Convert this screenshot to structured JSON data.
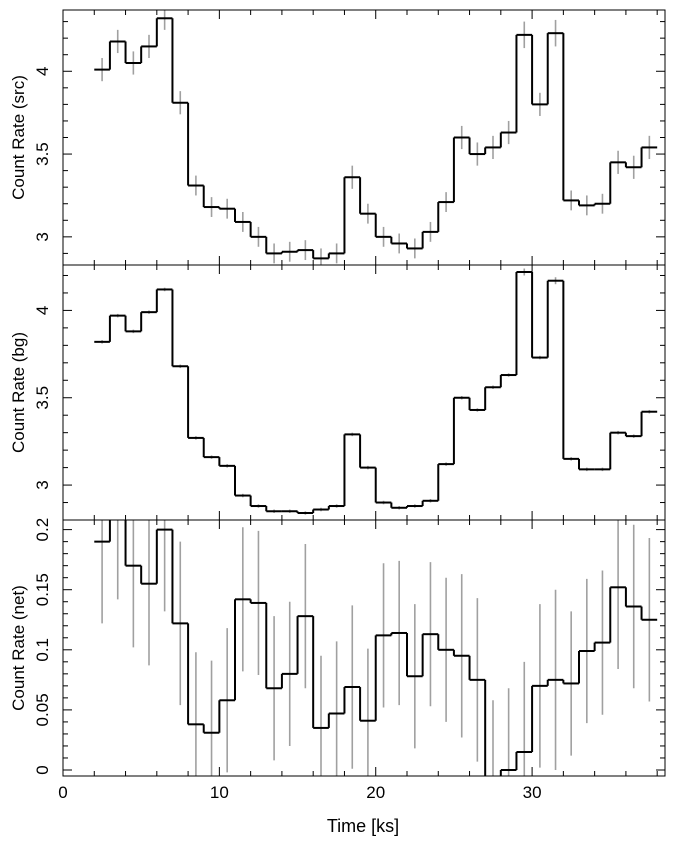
{
  "figure": {
    "xlabel": "Time [ks]",
    "colors": {
      "step": "#000000",
      "error": "#a0a0a0",
      "axis": "#000000"
    }
  },
  "chart_data": [
    {
      "type": "line",
      "panel": "src",
      "ylabel": "Count Rate (src)",
      "xlim": [
        0,
        38.5
      ],
      "ylim": [
        2.83,
        4.37
      ],
      "xticks": [
        "0",
        "10",
        "20",
        "30"
      ],
      "yticks": [
        "3",
        "3.5",
        "4"
      ],
      "x": [
        2.5,
        3.5,
        4.5,
        5.5,
        6.5,
        7.5,
        8.5,
        9.5,
        10.5,
        11.5,
        12.5,
        13.5,
        14.5,
        15.5,
        16.5,
        17.5,
        18.5,
        19.5,
        20.5,
        21.5,
        22.5,
        23.5,
        24.5,
        25.5,
        26.5,
        27.5,
        28.5,
        29.5,
        30.5,
        31.5,
        32.5,
        33.5,
        34.5,
        35.5,
        36.5,
        37.5
      ],
      "y": [
        4.01,
        4.18,
        4.05,
        4.15,
        4.32,
        3.81,
        3.31,
        3.18,
        3.17,
        3.09,
        3.0,
        2.9,
        2.91,
        2.92,
        2.87,
        2.9,
        3.36,
        3.14,
        3.0,
        2.96,
        2.93,
        3.03,
        3.21,
        3.6,
        3.5,
        3.54,
        3.63,
        4.22,
        3.8,
        4.23,
        3.22,
        3.19,
        3.2,
        3.45,
        3.42,
        3.54
      ],
      "yerr": [
        0.07,
        0.07,
        0.07,
        0.07,
        0.07,
        0.07,
        0.06,
        0.06,
        0.06,
        0.06,
        0.06,
        0.06,
        0.06,
        0.06,
        0.06,
        0.06,
        0.07,
        0.06,
        0.06,
        0.06,
        0.06,
        0.06,
        0.06,
        0.07,
        0.07,
        0.07,
        0.07,
        0.08,
        0.07,
        0.08,
        0.06,
        0.06,
        0.06,
        0.07,
        0.07,
        0.07
      ]
    },
    {
      "type": "line",
      "panel": "bg",
      "ylabel": "Count Rate (bg)",
      "xlim": [
        0,
        38.5
      ],
      "ylim": [
        2.8,
        4.26
      ],
      "xticks": [
        "0",
        "10",
        "20",
        "30"
      ],
      "yticks": [
        "3",
        "3.5",
        "4"
      ],
      "x": [
        2.5,
        3.5,
        4.5,
        5.5,
        6.5,
        7.5,
        8.5,
        9.5,
        10.5,
        11.5,
        12.5,
        13.5,
        14.5,
        15.5,
        16.5,
        17.5,
        18.5,
        19.5,
        20.5,
        21.5,
        22.5,
        23.5,
        24.5,
        25.5,
        26.5,
        27.5,
        28.5,
        29.5,
        30.5,
        31.5,
        32.5,
        33.5,
        34.5,
        35.5,
        36.5,
        37.5
      ],
      "y": [
        3.82,
        3.97,
        3.88,
        3.99,
        4.12,
        3.68,
        3.27,
        3.16,
        3.11,
        2.94,
        2.88,
        2.85,
        2.85,
        2.84,
        2.86,
        2.88,
        3.29,
        3.1,
        2.9,
        2.87,
        2.88,
        2.91,
        3.12,
        3.5,
        3.43,
        3.56,
        3.63,
        4.22,
        3.73,
        4.17,
        3.15,
        3.09,
        3.09,
        3.3,
        3.28,
        3.42
      ],
      "yerr": [
        0.01,
        0.01,
        0.01,
        0.01,
        0.01,
        0.01,
        0.01,
        0.01,
        0.01,
        0.01,
        0.01,
        0.01,
        0.01,
        0.01,
        0.01,
        0.01,
        0.01,
        0.01,
        0.01,
        0.01,
        0.01,
        0.01,
        0.01,
        0.01,
        0.01,
        0.01,
        0.01,
        0.02,
        0.01,
        0.02,
        0.01,
        0.01,
        0.01,
        0.01,
        0.01,
        0.01
      ]
    },
    {
      "type": "line",
      "panel": "net",
      "ylabel": "Count Rate (net)",
      "xlim": [
        0,
        38.5
      ],
      "ylim": [
        -0.005,
        0.208
      ],
      "xticks": [
        "0",
        "10",
        "20",
        "30"
      ],
      "yticks": [
        "0",
        "0.05",
        "0.1",
        "0.15",
        "0.2"
      ],
      "x": [
        2.5,
        3.5,
        4.5,
        5.5,
        6.5,
        7.5,
        8.5,
        9.5,
        10.5,
        11.5,
        12.5,
        13.5,
        14.5,
        15.5,
        16.5,
        17.5,
        18.5,
        19.5,
        20.5,
        21.5,
        22.5,
        23.5,
        24.5,
        25.5,
        26.5,
        27.5,
        28.5,
        29.5,
        30.5,
        31.5,
        32.5,
        33.5,
        34.5,
        35.5,
        36.5,
        37.5
      ],
      "y": [
        0.19,
        0.21,
        0.17,
        0.155,
        0.2,
        0.122,
        0.038,
        0.031,
        0.058,
        0.142,
        0.139,
        0.068,
        0.08,
        0.128,
        0.035,
        0.047,
        0.069,
        0.041,
        0.112,
        0.114,
        0.078,
        0.113,
        0.1,
        0.095,
        0.075,
        -0.01,
        0.0,
        0.015,
        0.07,
        0.075,
        0.072,
        0.099,
        0.106,
        0.152,
        0.136,
        0.125
      ],
      "yerr": [
        0.068,
        0.068,
        0.068,
        0.068,
        0.068,
        0.068,
        0.06,
        0.06,
        0.06,
        0.06,
        0.06,
        0.06,
        0.06,
        0.06,
        0.06,
        0.06,
        0.068,
        0.06,
        0.06,
        0.06,
        0.06,
        0.06,
        0.06,
        0.068,
        0.068,
        0.068,
        0.068,
        0.075,
        0.068,
        0.075,
        0.06,
        0.06,
        0.06,
        0.068,
        0.068,
        0.068
      ]
    }
  ]
}
